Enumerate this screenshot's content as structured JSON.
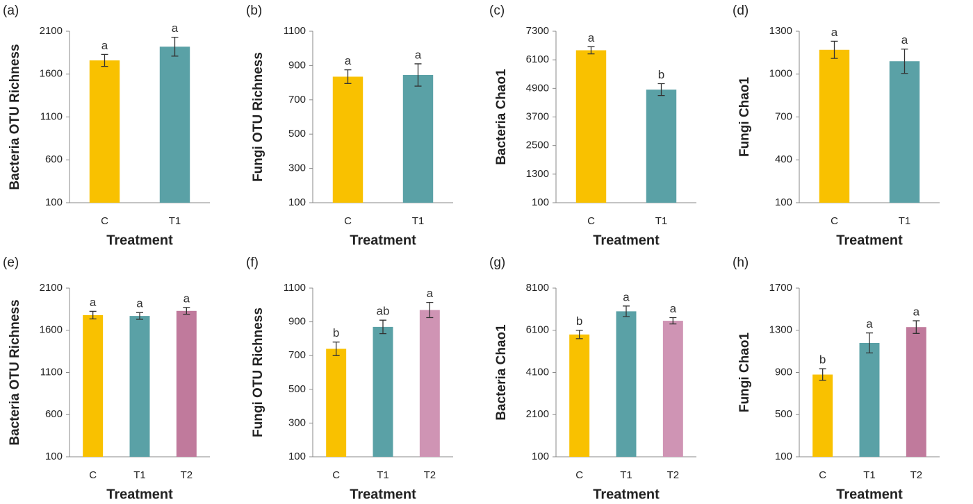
{
  "chart_data": [
    {
      "type": "bar",
      "title": "(a)",
      "y_label": "Bacteria OTU Richness",
      "x_label": "Treatment",
      "categories": [
        "C",
        "T1"
      ],
      "values": [
        1760,
        1920
      ],
      "errors": [
        70,
        110
      ],
      "annotations": [
        "a",
        "a"
      ],
      "colors": [
        "#f9c100",
        "#5aa1a6"
      ],
      "ylim": [
        100,
        2100
      ],
      "yticks": [
        100,
        600,
        1100,
        1600,
        2100
      ]
    },
    {
      "type": "bar",
      "title": "(b)",
      "y_label": "Fungi OTU Richness",
      "x_label": "Treatment",
      "categories": [
        "C",
        "T1"
      ],
      "values": [
        835,
        845
      ],
      "errors": [
        40,
        65
      ],
      "annotations": [
        "a",
        "a"
      ],
      "colors": [
        "#f9c100",
        "#5aa1a6"
      ],
      "ylim": [
        100,
        1100
      ],
      "yticks": [
        100,
        300,
        500,
        700,
        900,
        1100
      ]
    },
    {
      "type": "bar",
      "title": "(c)",
      "y_label": "Bacteria Chao1",
      "x_label": "Treatment",
      "categories": [
        "C",
        "T1"
      ],
      "values": [
        6500,
        4850
      ],
      "errors": [
        150,
        250
      ],
      "annotations": [
        "a",
        "b"
      ],
      "colors": [
        "#f9c100",
        "#5aa1a6"
      ],
      "ylim": [
        100,
        7300
      ],
      "yticks": [
        100,
        1300,
        2500,
        3700,
        4900,
        6100,
        7300
      ]
    },
    {
      "type": "bar",
      "title": "(d)",
      "y_label": "Fungi Chao1",
      "x_label": "Treatment",
      "categories": [
        "C",
        "T1"
      ],
      "values": [
        1170,
        1090
      ],
      "errors": [
        60,
        85
      ],
      "annotations": [
        "a",
        "a"
      ],
      "colors": [
        "#f9c100",
        "#5aa1a6"
      ],
      "ylim": [
        100,
        1300
      ],
      "yticks": [
        100,
        400,
        700,
        1000,
        1300
      ]
    },
    {
      "type": "bar",
      "title": "(e)",
      "y_label": "Bacteria OTU Richness",
      "x_label": "Treatment",
      "categories": [
        "C",
        "T1",
        "T2"
      ],
      "values": [
        1780,
        1770,
        1830
      ],
      "errors": [
        45,
        40,
        40
      ],
      "annotations": [
        "a",
        "a",
        "a"
      ],
      "colors": [
        "#f9c100",
        "#5aa1a6",
        "#c07a9c"
      ],
      "ylim": [
        100,
        2100
      ],
      "yticks": [
        100,
        600,
        1100,
        1600,
        2100
      ]
    },
    {
      "type": "bar",
      "title": "(f)",
      "y_label": "Fungi OTU Richness",
      "x_label": "Treatment",
      "categories": [
        "C",
        "T1",
        "T2"
      ],
      "values": [
        740,
        870,
        970
      ],
      "errors": [
        40,
        40,
        45
      ],
      "annotations": [
        "b",
        "ab",
        "a"
      ],
      "colors": [
        "#f9c100",
        "#5aa1a6",
        "#cf94b4"
      ],
      "ylim": [
        100,
        1100
      ],
      "yticks": [
        100,
        300,
        500,
        700,
        900,
        1100
      ]
    },
    {
      "type": "bar",
      "title": "(g)",
      "y_label": "Bacteria Chao1",
      "x_label": "Treatment",
      "categories": [
        "C",
        "T1",
        "T2"
      ],
      "values": [
        5900,
        7000,
        6550
      ],
      "errors": [
        200,
        250,
        150
      ],
      "annotations": [
        "b",
        "a",
        "a"
      ],
      "colors": [
        "#f9c100",
        "#5aa1a6",
        "#cf94b4"
      ],
      "ylim": [
        100,
        8100
      ],
      "yticks": [
        100,
        2100,
        4100,
        6100,
        8100
      ]
    },
    {
      "type": "bar",
      "title": "(h)",
      "y_label": "Fungi Chao1",
      "x_label": "Treatment",
      "categories": [
        "C",
        "T1",
        "T2"
      ],
      "values": [
        880,
        1180,
        1330
      ],
      "errors": [
        55,
        95,
        60
      ],
      "annotations": [
        "b",
        "a",
        "a"
      ],
      "colors": [
        "#f9c100",
        "#5aa1a6",
        "#c07a9c"
      ],
      "ylim": [
        100,
        1700
      ],
      "yticks": [
        100,
        500,
        900,
        1300,
        1700
      ]
    }
  ]
}
